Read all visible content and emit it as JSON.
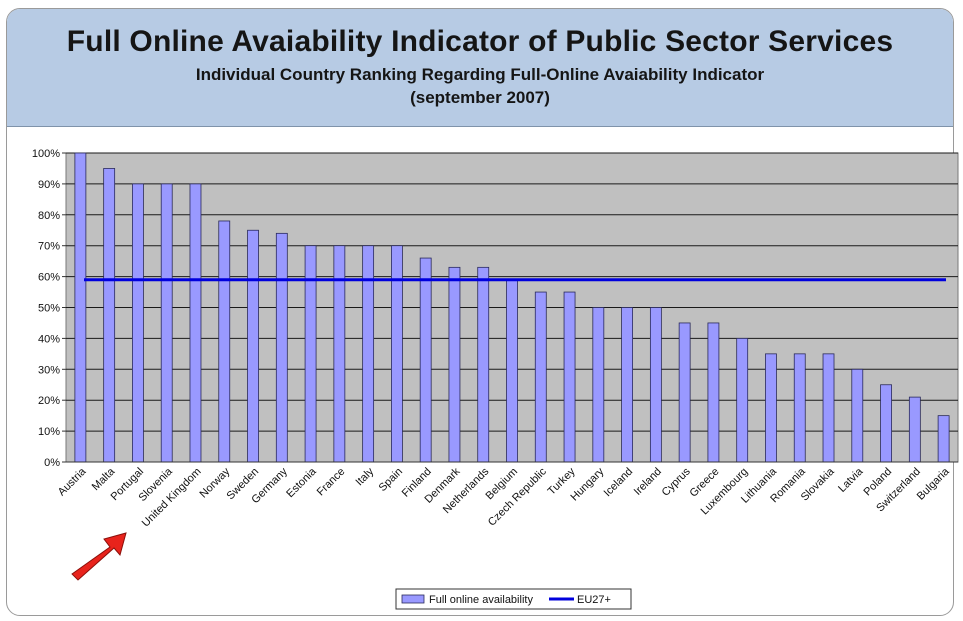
{
  "header": {
    "title": "Full Online Avaiability Indicator of Public Sector Services",
    "subtitle": "Individual Country Ranking Regarding Full-Online Avaiability Indicator",
    "date": "(september 2007)"
  },
  "chart_data": {
    "type": "bar",
    "categories": [
      "Austria",
      "Malta",
      "Portugal",
      "Slovenia",
      "United Kingdom",
      "Norway",
      "Sweden",
      "Germany",
      "Estonia",
      "France",
      "Italy",
      "Spain",
      "Finland",
      "Denmark",
      "Netherlands",
      "Belgium",
      "Czech Republic",
      "Turkey",
      "Hungary",
      "Iceland",
      "Ireland",
      "Cyprus",
      "Greece",
      "Luxembourg",
      "Lithuania",
      "Romania",
      "Slovakia",
      "Latvia",
      "Poland",
      "Switzerland",
      "Bulgaria"
    ],
    "series": [
      {
        "name": "Full online availability",
        "values": [
          100,
          95,
          90,
          90,
          90,
          78,
          75,
          74,
          70,
          70,
          70,
          70,
          66,
          63,
          63,
          59,
          55,
          55,
          50,
          50,
          50,
          45,
          45,
          40,
          35,
          35,
          35,
          30,
          25,
          21,
          15
        ]
      }
    ],
    "reference_line": {
      "name": "EU27+",
      "value": 59
    },
    "yticks": [
      "0%",
      "10%",
      "20%",
      "30%",
      "40%",
      "50%",
      "60%",
      "70%",
      "80%",
      "90%",
      "100%"
    ],
    "ylim": [
      0,
      100
    ],
    "grid": true,
    "legend_position": "bottom-center",
    "colors": {
      "bar": "#9999ff",
      "bar_edge": "#2a2a5a",
      "reference_line": "#0000dd",
      "plot_bg": "#c0c0c0",
      "arrow": "#e8231c"
    }
  }
}
